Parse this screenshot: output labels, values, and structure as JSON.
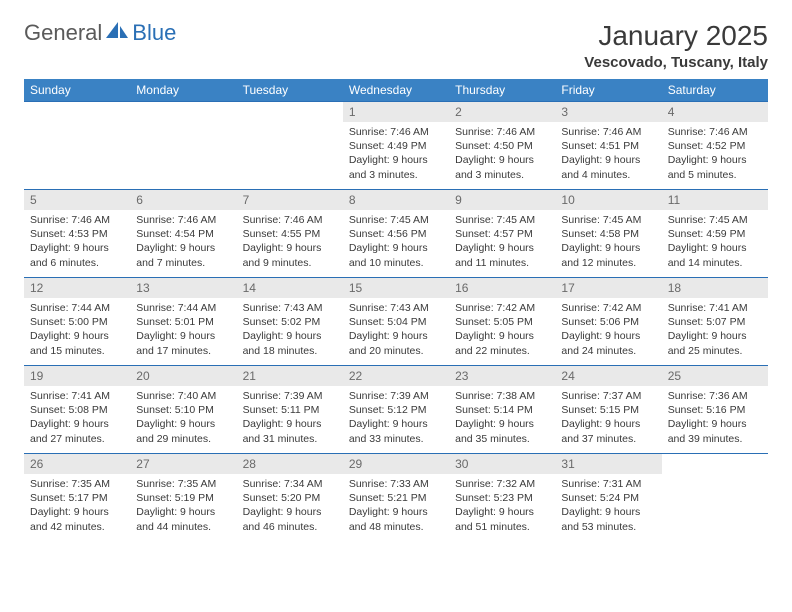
{
  "brand": {
    "general": "General",
    "blue": "Blue"
  },
  "title": "January 2025",
  "location": "Vescovado, Tuscany, Italy",
  "colors": {
    "header_bg": "#3a82c4",
    "header_fg": "#ffffff",
    "week_border": "#2a6fb5",
    "daynum_bg": "#e9e9e9",
    "daynum_fg": "#6a6a6a",
    "text": "#3a3a3a",
    "page_bg": "#ffffff"
  },
  "typography": {
    "title_fontsize_pt": 21,
    "location_fontsize_pt": 11,
    "day_header_fontsize_pt": 9,
    "daynum_fontsize_pt": 9,
    "body_fontsize_pt": 8
  },
  "calendar": {
    "type": "table",
    "columns": [
      "Sunday",
      "Monday",
      "Tuesday",
      "Wednesday",
      "Thursday",
      "Friday",
      "Saturday"
    ],
    "first_weekday_index": 3,
    "days": [
      {
        "n": 1,
        "sunrise": "7:46 AM",
        "sunset": "4:49 PM",
        "daylight": "9 hours and 3 minutes."
      },
      {
        "n": 2,
        "sunrise": "7:46 AM",
        "sunset": "4:50 PM",
        "daylight": "9 hours and 3 minutes."
      },
      {
        "n": 3,
        "sunrise": "7:46 AM",
        "sunset": "4:51 PM",
        "daylight": "9 hours and 4 minutes."
      },
      {
        "n": 4,
        "sunrise": "7:46 AM",
        "sunset": "4:52 PM",
        "daylight": "9 hours and 5 minutes."
      },
      {
        "n": 5,
        "sunrise": "7:46 AM",
        "sunset": "4:53 PM",
        "daylight": "9 hours and 6 minutes."
      },
      {
        "n": 6,
        "sunrise": "7:46 AM",
        "sunset": "4:54 PM",
        "daylight": "9 hours and 7 minutes."
      },
      {
        "n": 7,
        "sunrise": "7:46 AM",
        "sunset": "4:55 PM",
        "daylight": "9 hours and 9 minutes."
      },
      {
        "n": 8,
        "sunrise": "7:45 AM",
        "sunset": "4:56 PM",
        "daylight": "9 hours and 10 minutes."
      },
      {
        "n": 9,
        "sunrise": "7:45 AM",
        "sunset": "4:57 PM",
        "daylight": "9 hours and 11 minutes."
      },
      {
        "n": 10,
        "sunrise": "7:45 AM",
        "sunset": "4:58 PM",
        "daylight": "9 hours and 12 minutes."
      },
      {
        "n": 11,
        "sunrise": "7:45 AM",
        "sunset": "4:59 PM",
        "daylight": "9 hours and 14 minutes."
      },
      {
        "n": 12,
        "sunrise": "7:44 AM",
        "sunset": "5:00 PM",
        "daylight": "9 hours and 15 minutes."
      },
      {
        "n": 13,
        "sunrise": "7:44 AM",
        "sunset": "5:01 PM",
        "daylight": "9 hours and 17 minutes."
      },
      {
        "n": 14,
        "sunrise": "7:43 AM",
        "sunset": "5:02 PM",
        "daylight": "9 hours and 18 minutes."
      },
      {
        "n": 15,
        "sunrise": "7:43 AM",
        "sunset": "5:04 PM",
        "daylight": "9 hours and 20 minutes."
      },
      {
        "n": 16,
        "sunrise": "7:42 AM",
        "sunset": "5:05 PM",
        "daylight": "9 hours and 22 minutes."
      },
      {
        "n": 17,
        "sunrise": "7:42 AM",
        "sunset": "5:06 PM",
        "daylight": "9 hours and 24 minutes."
      },
      {
        "n": 18,
        "sunrise": "7:41 AM",
        "sunset": "5:07 PM",
        "daylight": "9 hours and 25 minutes."
      },
      {
        "n": 19,
        "sunrise": "7:41 AM",
        "sunset": "5:08 PM",
        "daylight": "9 hours and 27 minutes."
      },
      {
        "n": 20,
        "sunrise": "7:40 AM",
        "sunset": "5:10 PM",
        "daylight": "9 hours and 29 minutes."
      },
      {
        "n": 21,
        "sunrise": "7:39 AM",
        "sunset": "5:11 PM",
        "daylight": "9 hours and 31 minutes."
      },
      {
        "n": 22,
        "sunrise": "7:39 AM",
        "sunset": "5:12 PM",
        "daylight": "9 hours and 33 minutes."
      },
      {
        "n": 23,
        "sunrise": "7:38 AM",
        "sunset": "5:14 PM",
        "daylight": "9 hours and 35 minutes."
      },
      {
        "n": 24,
        "sunrise": "7:37 AM",
        "sunset": "5:15 PM",
        "daylight": "9 hours and 37 minutes."
      },
      {
        "n": 25,
        "sunrise": "7:36 AM",
        "sunset": "5:16 PM",
        "daylight": "9 hours and 39 minutes."
      },
      {
        "n": 26,
        "sunrise": "7:35 AM",
        "sunset": "5:17 PM",
        "daylight": "9 hours and 42 minutes."
      },
      {
        "n": 27,
        "sunrise": "7:35 AM",
        "sunset": "5:19 PM",
        "daylight": "9 hours and 44 minutes."
      },
      {
        "n": 28,
        "sunrise": "7:34 AM",
        "sunset": "5:20 PM",
        "daylight": "9 hours and 46 minutes."
      },
      {
        "n": 29,
        "sunrise": "7:33 AM",
        "sunset": "5:21 PM",
        "daylight": "9 hours and 48 minutes."
      },
      {
        "n": 30,
        "sunrise": "7:32 AM",
        "sunset": "5:23 PM",
        "daylight": "9 hours and 51 minutes."
      },
      {
        "n": 31,
        "sunrise": "7:31 AM",
        "sunset": "5:24 PM",
        "daylight": "9 hours and 53 minutes."
      }
    ],
    "labels": {
      "sunrise": "Sunrise:",
      "sunset": "Sunset:",
      "daylight": "Daylight:"
    }
  }
}
